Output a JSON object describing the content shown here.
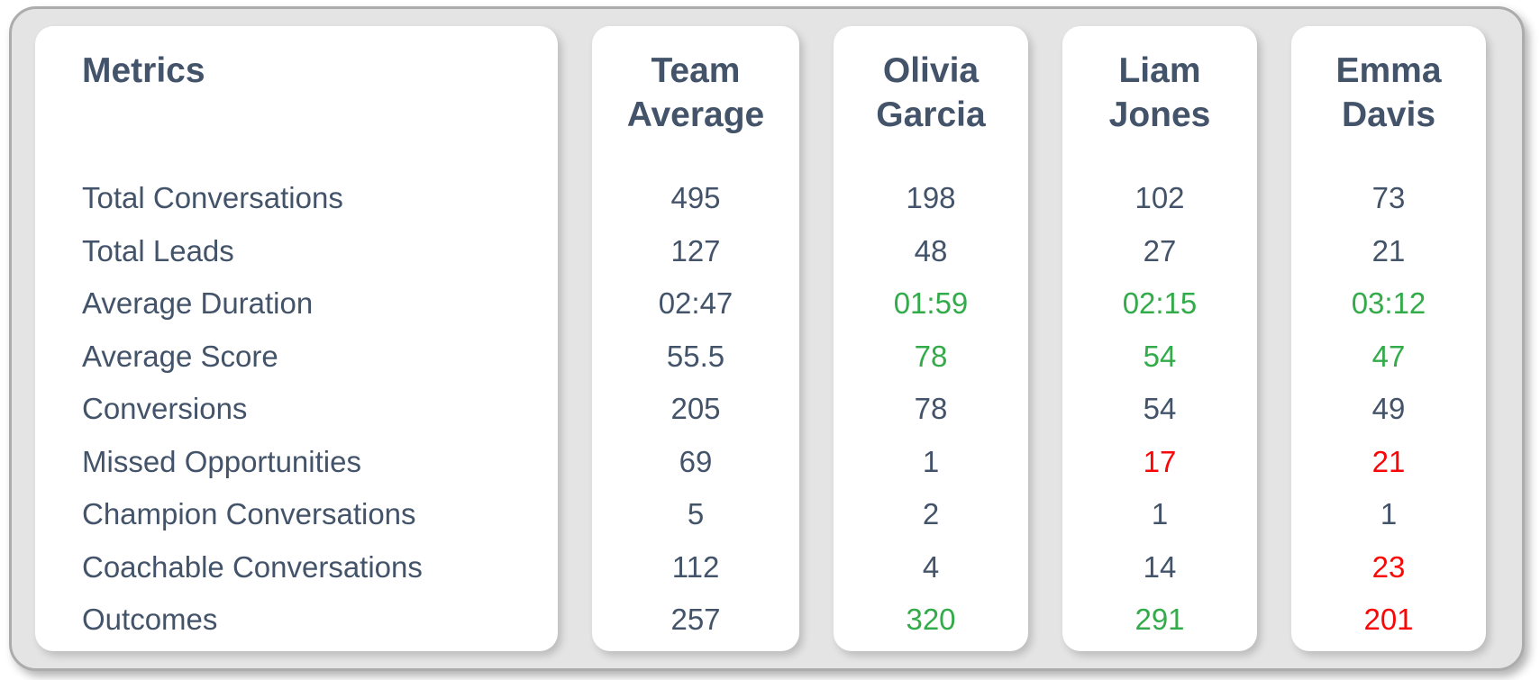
{
  "colors": {
    "default": "#435369",
    "good": "#34AB4A",
    "bad": "#F90707",
    "panel_background": "#E4E4E4",
    "panel_border": "#ACACAC",
    "card_background": "#FFFFFF"
  },
  "metrics_card": {
    "title": "Metrics",
    "rows": [
      "Total Conversations",
      "Total Leads",
      "Average Duration",
      "Average Score",
      "Conversions",
      "Missed Opportunities",
      "Champion Conversations",
      "Coachable Conversations",
      "Outcomes"
    ]
  },
  "columns": [
    {
      "name": "Team Average",
      "values": [
        {
          "text": "495",
          "status": "default"
        },
        {
          "text": "127",
          "status": "default"
        },
        {
          "text": "02:47",
          "status": "default"
        },
        {
          "text": "55.5",
          "status": "default"
        },
        {
          "text": "205",
          "status": "default"
        },
        {
          "text": "69",
          "status": "default"
        },
        {
          "text": "5",
          "status": "default"
        },
        {
          "text": "112",
          "status": "default"
        },
        {
          "text": "257",
          "status": "default"
        }
      ]
    },
    {
      "name": "Olivia Garcia",
      "values": [
        {
          "text": "198",
          "status": "default"
        },
        {
          "text": "48",
          "status": "default"
        },
        {
          "text": "01:59",
          "status": "good"
        },
        {
          "text": "78",
          "status": "good"
        },
        {
          "text": "78",
          "status": "default"
        },
        {
          "text": "1",
          "status": "default"
        },
        {
          "text": "2",
          "status": "default"
        },
        {
          "text": "4",
          "status": "default"
        },
        {
          "text": "320",
          "status": "good"
        }
      ]
    },
    {
      "name": "Liam Jones",
      "values": [
        {
          "text": "102",
          "status": "default"
        },
        {
          "text": "27",
          "status": "default"
        },
        {
          "text": "02:15",
          "status": "good"
        },
        {
          "text": "54",
          "status": "good"
        },
        {
          "text": "54",
          "status": "default"
        },
        {
          "text": "17",
          "status": "bad"
        },
        {
          "text": "1",
          "status": "default"
        },
        {
          "text": "14",
          "status": "default"
        },
        {
          "text": "291",
          "status": "good"
        }
      ]
    },
    {
      "name": "Emma Davis",
      "values": [
        {
          "text": "73",
          "status": "default"
        },
        {
          "text": "21",
          "status": "default"
        },
        {
          "text": "03:12",
          "status": "good"
        },
        {
          "text": "47",
          "status": "good"
        },
        {
          "text": "49",
          "status": "default"
        },
        {
          "text": "21",
          "status": "bad"
        },
        {
          "text": "1",
          "status": "default"
        },
        {
          "text": "23",
          "status": "bad"
        },
        {
          "text": "201",
          "status": "bad"
        }
      ]
    }
  ],
  "chart_data": {
    "type": "table",
    "title": "Metrics",
    "row_labels": [
      "Total Conversations",
      "Total Leads",
      "Average Duration",
      "Average Score",
      "Conversions",
      "Missed Opportunities",
      "Champion Conversations",
      "Coachable Conversations",
      "Outcomes"
    ],
    "categories": [
      "Team Average",
      "Olivia Garcia",
      "Liam Jones",
      "Emma Davis"
    ],
    "series": [
      {
        "name": "Team Average",
        "values": [
          "495",
          "127",
          "02:47",
          "55.5",
          "205",
          "69",
          "5",
          "112",
          "257"
        ]
      },
      {
        "name": "Olivia Garcia",
        "values": [
          "198",
          "48",
          "01:59",
          "78",
          "78",
          "1",
          "2",
          "4",
          "320"
        ]
      },
      {
        "name": "Liam Jones",
        "values": [
          "102",
          "27",
          "02:15",
          "54",
          "54",
          "17",
          "1",
          "14",
          "291"
        ]
      },
      {
        "name": "Emma Davis",
        "values": [
          "73",
          "21",
          "03:12",
          "47",
          "49",
          "21",
          "1",
          "23",
          "201"
        ]
      }
    ],
    "highlight_legend": {
      "good_color": "#34AB4A",
      "bad_color": "#F90707",
      "neutral_color": "#435369"
    },
    "layout": "metric rows on left card; one card per column of values; good values green, bad values red"
  }
}
